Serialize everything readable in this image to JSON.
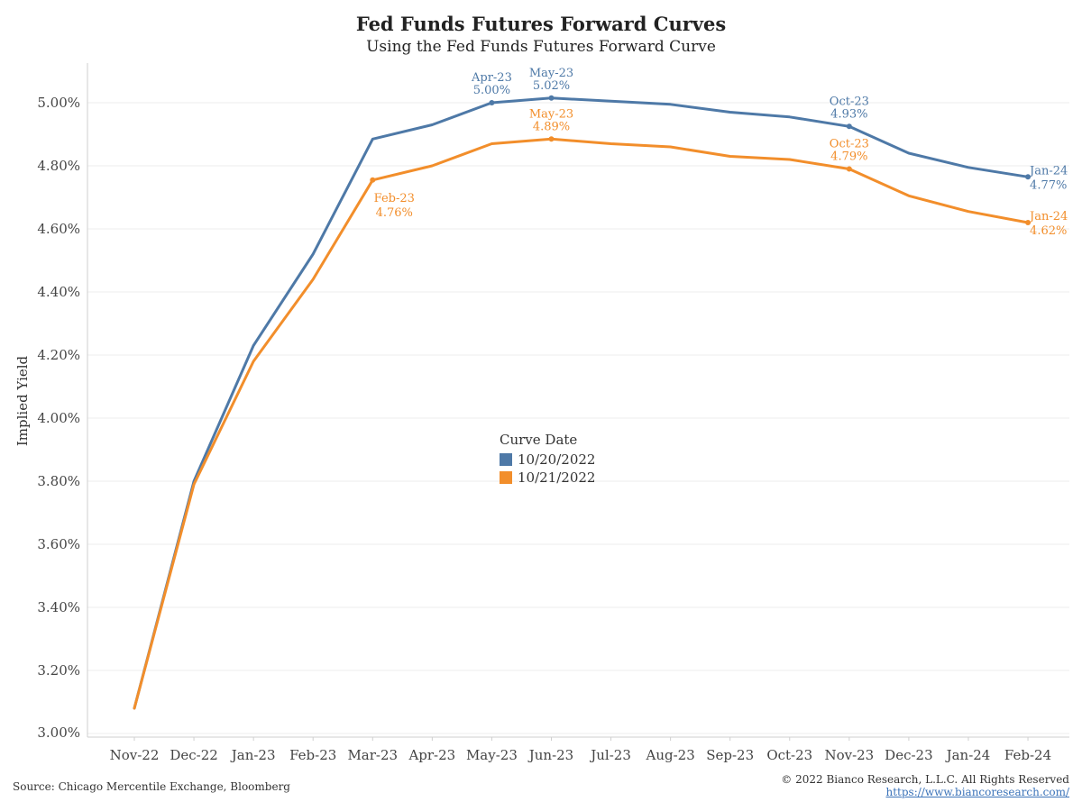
{
  "header": {
    "title": "Fed Funds Futures Forward Curves",
    "subtitle": "Using the Fed Funds Futures Forward Curve"
  },
  "legend": {
    "title": "Curve Date",
    "items": [
      {
        "label": "10/20/2022",
        "color": "#4e79a7"
      },
      {
        "label": "10/21/2022",
        "color": "#f28e2b"
      }
    ]
  },
  "footer": {
    "source": "Source: Chicago Mercentile Exchange, Bloomberg",
    "copyright": "© 2022 Bianco Research, L.L.C. All Rights Reserved",
    "url": "https://www.biancoresearch.com/"
  },
  "chart_data": {
    "type": "line",
    "title": "Fed Funds Futures Forward Curves",
    "subtitle": "Using the Fed Funds Futures Forward Curve",
    "xlabel": "",
    "ylabel": "Implied Yield",
    "ylim": [
      3.0,
      5.1
    ],
    "yticks": [
      "3.00%",
      "3.20%",
      "3.40%",
      "3.60%",
      "3.80%",
      "4.00%",
      "4.20%",
      "4.40%",
      "4.60%",
      "4.80%",
      "5.00%"
    ],
    "grid": true,
    "legend_position": "center",
    "categories": [
      "Nov-22",
      "Dec-22",
      "Jan-23",
      "Feb-23",
      "Mar-23",
      "Apr-23",
      "May-23",
      "Jun-23",
      "Jul-23",
      "Aug-23",
      "Sep-23",
      "Oct-23",
      "Nov-23",
      "Dec-23",
      "Jan-24",
      "Feb-24"
    ],
    "series": [
      {
        "name": "10/20/2022",
        "color": "#4e79a7",
        "values": [
          3.08,
          3.8,
          4.23,
          4.52,
          4.885,
          4.93,
          5.0,
          5.015,
          5.005,
          4.995,
          4.97,
          4.955,
          4.925,
          4.84,
          4.795,
          4.765
        ],
        "annotations": [
          {
            "index": 6,
            "label": "Apr-23",
            "value": "5.00%",
            "pos": "above"
          },
          {
            "index": 7,
            "label": "May-23",
            "value": "5.02%",
            "pos": "above"
          },
          {
            "index": 12,
            "label": "Oct-23",
            "value": "4.93%",
            "pos": "above"
          },
          {
            "index": 15,
            "label": "Jan-24",
            "value": "4.77%",
            "pos": "right"
          }
        ]
      },
      {
        "name": "10/21/2022",
        "color": "#f28e2b",
        "values": [
          3.08,
          3.79,
          4.18,
          4.44,
          4.755,
          4.8,
          4.87,
          4.885,
          4.87,
          4.86,
          4.83,
          4.82,
          4.79,
          4.705,
          4.655,
          4.62
        ],
        "annotations": [
          {
            "index": 4,
            "label": "Feb-23",
            "value": "4.76%",
            "pos": "below"
          },
          {
            "index": 7,
            "label": "May-23",
            "value": "4.89%",
            "pos": "above"
          },
          {
            "index": 12,
            "label": "Oct-23",
            "value": "4.79%",
            "pos": "above"
          },
          {
            "index": 15,
            "label": "Jan-24",
            "value": "4.62%",
            "pos": "right"
          }
        ]
      }
    ]
  }
}
